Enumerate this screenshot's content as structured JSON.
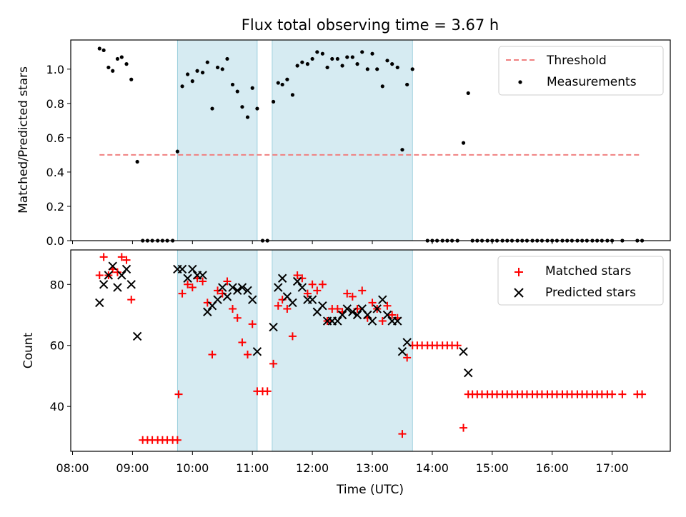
{
  "chart_data": {
    "title": "Flux total observing time = 3.67 h",
    "xlabel": "Time (UTC)",
    "x_unit": "hours",
    "xlim": [
      7.97,
      17.97
    ],
    "x_ticks": [
      {
        "value": 8,
        "label": "08:00"
      },
      {
        "value": 9,
        "label": "09:00"
      },
      {
        "value": 10,
        "label": "10:00"
      },
      {
        "value": 11,
        "label": "11:00"
      },
      {
        "value": 12,
        "label": "12:00"
      },
      {
        "value": 13,
        "label": "13:00"
      },
      {
        "value": 14,
        "label": "14:00"
      },
      {
        "value": 15,
        "label": "15:00"
      },
      {
        "value": 16,
        "label": "16:00"
      },
      {
        "value": 17,
        "label": "17:00"
      }
    ],
    "observing_windows": [
      [
        9.75,
        11.08
      ],
      [
        11.33,
        13.67
      ]
    ],
    "top": {
      "type": "scatter",
      "ylabel": "Matched/Predicted stars",
      "ylim": [
        0,
        1.17
      ],
      "y_ticks": [
        {
          "value": 0,
          "label": "0.0"
        },
        {
          "value": 0.2,
          "label": "0.2"
        },
        {
          "value": 0.4,
          "label": "0.4"
        },
        {
          "value": 0.6,
          "label": "0.6"
        },
        {
          "value": 0.8,
          "label": "0.8"
        },
        {
          "value": 1.0,
          "label": "1.0"
        }
      ],
      "threshold": {
        "name": "Threshold",
        "value": 0.5,
        "x_range": [
          8.45,
          17.45
        ],
        "color": "#f08080"
      },
      "measurements": {
        "name": "Measurements",
        "color": "#000000",
        "points": [
          [
            8.45,
            1.12
          ],
          [
            8.52,
            1.11
          ],
          [
            8.6,
            1.01
          ],
          [
            8.67,
            0.99
          ],
          [
            8.75,
            1.06
          ],
          [
            8.82,
            1.07
          ],
          [
            8.9,
            1.03
          ],
          [
            8.98,
            0.94
          ],
          [
            9.08,
            0.46
          ],
          [
            9.17,
            0
          ],
          [
            9.25,
            0
          ],
          [
            9.33,
            0
          ],
          [
            9.42,
            0
          ],
          [
            9.5,
            0
          ],
          [
            9.58,
            0
          ],
          [
            9.67,
            0
          ],
          [
            9.75,
            0.52
          ],
          [
            9.83,
            0.9
          ],
          [
            9.92,
            0.97
          ],
          [
            10.0,
            0.93
          ],
          [
            10.08,
            0.99
          ],
          [
            10.17,
            0.98
          ],
          [
            10.25,
            1.04
          ],
          [
            10.33,
            0.77
          ],
          [
            10.42,
            1.01
          ],
          [
            10.5,
            1.0
          ],
          [
            10.58,
            1.06
          ],
          [
            10.67,
            0.91
          ],
          [
            10.75,
            0.87
          ],
          [
            10.83,
            0.78
          ],
          [
            10.92,
            0.72
          ],
          [
            11.0,
            0.89
          ],
          [
            11.08,
            0.77
          ],
          [
            11.17,
            0
          ],
          [
            11.25,
            0
          ],
          [
            11.35,
            0.81
          ],
          [
            11.43,
            0.92
          ],
          [
            11.5,
            0.91
          ],
          [
            11.58,
            0.94
          ],
          [
            11.67,
            0.85
          ],
          [
            11.75,
            1.02
          ],
          [
            11.83,
            1.04
          ],
          [
            11.92,
            1.03
          ],
          [
            12.0,
            1.06
          ],
          [
            12.08,
            1.1
          ],
          [
            12.17,
            1.09
          ],
          [
            12.25,
            1.01
          ],
          [
            12.33,
            1.06
          ],
          [
            12.42,
            1.06
          ],
          [
            12.5,
            1.02
          ],
          [
            12.58,
            1.07
          ],
          [
            12.67,
            1.07
          ],
          [
            12.75,
            1.03
          ],
          [
            12.83,
            1.1
          ],
          [
            12.92,
            1.0
          ],
          [
            13.0,
            1.09
          ],
          [
            13.08,
            1.0
          ],
          [
            13.17,
            0.9
          ],
          [
            13.25,
            1.05
          ],
          [
            13.33,
            1.03
          ],
          [
            13.42,
            1.01
          ],
          [
            13.5,
            0.53
          ],
          [
            13.58,
            0.91
          ],
          [
            13.67,
            1.0
          ],
          [
            13.92,
            0
          ],
          [
            14.0,
            0
          ],
          [
            14.08,
            0
          ],
          [
            14.17,
            0
          ],
          [
            14.25,
            0
          ],
          [
            14.33,
            0
          ],
          [
            14.42,
            0
          ],
          [
            14.52,
            0.57
          ],
          [
            14.6,
            0.86
          ],
          [
            14.67,
            0
          ],
          [
            14.75,
            0
          ],
          [
            14.83,
            0
          ],
          [
            14.92,
            0
          ],
          [
            15.0,
            0
          ],
          [
            15.08,
            0
          ],
          [
            15.17,
            0
          ],
          [
            15.25,
            0
          ],
          [
            15.33,
            0
          ],
          [
            15.42,
            0
          ],
          [
            15.5,
            0
          ],
          [
            15.58,
            0
          ],
          [
            15.67,
            0
          ],
          [
            15.75,
            0
          ],
          [
            15.83,
            0
          ],
          [
            15.92,
            0
          ],
          [
            16.0,
            0
          ],
          [
            16.08,
            0
          ],
          [
            16.17,
            0
          ],
          [
            16.25,
            0
          ],
          [
            16.33,
            0
          ],
          [
            16.42,
            0
          ],
          [
            16.5,
            0
          ],
          [
            16.58,
            0
          ],
          [
            16.67,
            0
          ],
          [
            16.75,
            0
          ],
          [
            16.83,
            0
          ],
          [
            16.92,
            0
          ],
          [
            17.0,
            0
          ],
          [
            17.17,
            0
          ],
          [
            17.42,
            0
          ],
          [
            17.5,
            0
          ]
        ]
      }
    },
    "bottom": {
      "type": "scatter",
      "ylabel": "Count",
      "ylim": [
        25.3,
        91.3
      ],
      "y_ticks": [
        {
          "value": 40,
          "label": "40"
        },
        {
          "value": 60,
          "label": "60"
        },
        {
          "value": 80,
          "label": "80"
        }
      ],
      "matched": {
        "name": "Matched stars",
        "color": "#ff0000",
        "points": [
          [
            8.45,
            83
          ],
          [
            8.52,
            89
          ],
          [
            8.6,
            83
          ],
          [
            8.67,
            85
          ],
          [
            8.75,
            84
          ],
          [
            8.82,
            89
          ],
          [
            8.9,
            88
          ],
          [
            8.98,
            75
          ],
          [
            9.17,
            29
          ],
          [
            9.25,
            29
          ],
          [
            9.33,
            29
          ],
          [
            9.42,
            29
          ],
          [
            9.5,
            29
          ],
          [
            9.58,
            29
          ],
          [
            9.67,
            29
          ],
          [
            9.75,
            29
          ],
          [
            9.77,
            44
          ],
          [
            9.83,
            77
          ],
          [
            9.92,
            80
          ],
          [
            10.0,
            79
          ],
          [
            10.08,
            82
          ],
          [
            10.17,
            81
          ],
          [
            10.25,
            74
          ],
          [
            10.33,
            57
          ],
          [
            10.42,
            78
          ],
          [
            10.5,
            77
          ],
          [
            10.58,
            81
          ],
          [
            10.67,
            72
          ],
          [
            10.75,
            69
          ],
          [
            10.83,
            61
          ],
          [
            10.92,
            57
          ],
          [
            11.0,
            67
          ],
          [
            11.08,
            45
          ],
          [
            11.17,
            45
          ],
          [
            11.25,
            45
          ],
          [
            11.35,
            54
          ],
          [
            11.43,
            73
          ],
          [
            11.5,
            75
          ],
          [
            11.58,
            72
          ],
          [
            11.67,
            63
          ],
          [
            11.75,
            83
          ],
          [
            11.83,
            82
          ],
          [
            11.92,
            77
          ],
          [
            12.0,
            80
          ],
          [
            12.08,
            78
          ],
          [
            12.17,
            80
          ],
          [
            12.25,
            68
          ],
          [
            12.33,
            72
          ],
          [
            12.42,
            72
          ],
          [
            12.5,
            71
          ],
          [
            12.58,
            77
          ],
          [
            12.67,
            76
          ],
          [
            12.75,
            72
          ],
          [
            12.83,
            78
          ],
          [
            12.92,
            69
          ],
          [
            13.0,
            74
          ],
          [
            13.08,
            72
          ],
          [
            13.17,
            68
          ],
          [
            13.25,
            73
          ],
          [
            13.33,
            70
          ],
          [
            13.42,
            69
          ],
          [
            13.5,
            31
          ],
          [
            13.58,
            56
          ],
          [
            13.67,
            60
          ],
          [
            13.75,
            60
          ],
          [
            13.83,
            60
          ],
          [
            13.92,
            60
          ],
          [
            14.0,
            60
          ],
          [
            14.08,
            60
          ],
          [
            14.17,
            60
          ],
          [
            14.25,
            60
          ],
          [
            14.33,
            60
          ],
          [
            14.42,
            60
          ],
          [
            14.52,
            33
          ],
          [
            14.6,
            44
          ],
          [
            14.67,
            44
          ],
          [
            14.75,
            44
          ],
          [
            14.83,
            44
          ],
          [
            14.92,
            44
          ],
          [
            15.0,
            44
          ],
          [
            15.08,
            44
          ],
          [
            15.17,
            44
          ],
          [
            15.25,
            44
          ],
          [
            15.33,
            44
          ],
          [
            15.42,
            44
          ],
          [
            15.5,
            44
          ],
          [
            15.58,
            44
          ],
          [
            15.67,
            44
          ],
          [
            15.75,
            44
          ],
          [
            15.83,
            44
          ],
          [
            15.92,
            44
          ],
          [
            16.0,
            44
          ],
          [
            16.08,
            44
          ],
          [
            16.17,
            44
          ],
          [
            16.25,
            44
          ],
          [
            16.33,
            44
          ],
          [
            16.42,
            44
          ],
          [
            16.5,
            44
          ],
          [
            16.58,
            44
          ],
          [
            16.67,
            44
          ],
          [
            16.75,
            44
          ],
          [
            16.83,
            44
          ],
          [
            16.92,
            44
          ],
          [
            17.0,
            44
          ],
          [
            17.17,
            44
          ],
          [
            17.42,
            44
          ],
          [
            17.5,
            44
          ]
        ]
      },
      "predicted": {
        "name": "Predicted stars",
        "color": "#000000",
        "points": [
          [
            8.45,
            74
          ],
          [
            8.52,
            80
          ],
          [
            8.6,
            83
          ],
          [
            8.67,
            86
          ],
          [
            8.75,
            79
          ],
          [
            8.82,
            83
          ],
          [
            8.9,
            85
          ],
          [
            8.98,
            80
          ],
          [
            9.08,
            63
          ],
          [
            9.75,
            85
          ],
          [
            9.83,
            85
          ],
          [
            9.92,
            82
          ],
          [
            10.0,
            85
          ],
          [
            10.08,
            83
          ],
          [
            10.17,
            83
          ],
          [
            10.25,
            71
          ],
          [
            10.33,
            73
          ],
          [
            10.42,
            75
          ],
          [
            10.5,
            79
          ],
          [
            10.58,
            76
          ],
          [
            10.67,
            79
          ],
          [
            10.75,
            78
          ],
          [
            10.83,
            79
          ],
          [
            10.92,
            78
          ],
          [
            11.0,
            75
          ],
          [
            11.08,
            58
          ],
          [
            11.35,
            66
          ],
          [
            11.43,
            79
          ],
          [
            11.5,
            82
          ],
          [
            11.58,
            76
          ],
          [
            11.67,
            74
          ],
          [
            11.75,
            81
          ],
          [
            11.83,
            79
          ],
          [
            11.92,
            75
          ],
          [
            12.0,
            75
          ],
          [
            12.08,
            71
          ],
          [
            12.17,
            73
          ],
          [
            12.25,
            68
          ],
          [
            12.33,
            68
          ],
          [
            12.42,
            68
          ],
          [
            12.5,
            70
          ],
          [
            12.58,
            72
          ],
          [
            12.67,
            71
          ],
          [
            12.75,
            70
          ],
          [
            12.83,
            72
          ],
          [
            12.92,
            70
          ],
          [
            13.0,
            68
          ],
          [
            13.08,
            72
          ],
          [
            13.17,
            75
          ],
          [
            13.25,
            70
          ],
          [
            13.33,
            68
          ],
          [
            13.42,
            68
          ],
          [
            13.5,
            58
          ],
          [
            13.58,
            61
          ],
          [
            14.52,
            58
          ],
          [
            14.6,
            51
          ]
        ]
      }
    }
  }
}
